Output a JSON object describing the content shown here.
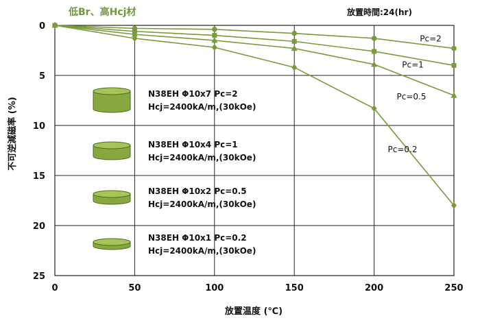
{
  "chart_data": {
    "type": "line",
    "subtitle": "低Br、高Hcj材",
    "note": "放置時間:24(hr)",
    "xlabel": "放置温度 (℃)",
    "ylabel": "不可逆減磁率 (%)",
    "xlim": [
      0,
      250
    ],
    "ylim": [
      0,
      25
    ],
    "y_inverted": true,
    "grid": true,
    "x_ticks": [
      0,
      50,
      100,
      150,
      200,
      250
    ],
    "y_ticks": [
      0,
      5,
      10,
      15,
      20,
      25
    ],
    "x": [
      0,
      50,
      100,
      150,
      200,
      250
    ],
    "series": [
      {
        "name": "Pc=2",
        "marker": "circle",
        "values": [
          0,
          0.3,
          0.4,
          0.8,
          1.3,
          2.3
        ]
      },
      {
        "name": "Pc=1",
        "marker": "square",
        "values": [
          0,
          0.6,
          1.0,
          1.6,
          2.6,
          4.0
        ]
      },
      {
        "name": "Pc=0.5",
        "marker": "triangle",
        "values": [
          0,
          0.9,
          1.5,
          2.3,
          3.9,
          7.0
        ]
      },
      {
        "name": "Pc=0.2",
        "marker": "diamond",
        "values": [
          0,
          1.3,
          2.2,
          4.2,
          8.3,
          18.0
        ]
      }
    ],
    "samples": [
      {
        "line1": "N38EH Φ10x7 Pc=2",
        "line2": "Hcj=2400kA/m,(30kOe)"
      },
      {
        "line1": "N38EH Φ10x4 Pc=1",
        "line2": "Hcj=2400kA/m,(30kOe)"
      },
      {
        "line1": "N38EH Φ10x2 Pc=0.5",
        "line2": "Hcj=2400kA/m,(30kOe)"
      },
      {
        "line1": "N38EH Φ10x1 Pc=0.2",
        "line2": "Hcj=2400kA/m,(30kOe)"
      }
    ],
    "colors": {
      "series": "#7a9a3c",
      "subtitle": "#6f9a3a",
      "cylinder": "#86a83f",
      "cylinder_top": "#a6c45a",
      "cylinder_edge": "#4f6d1f",
      "grid": "#222222"
    }
  }
}
